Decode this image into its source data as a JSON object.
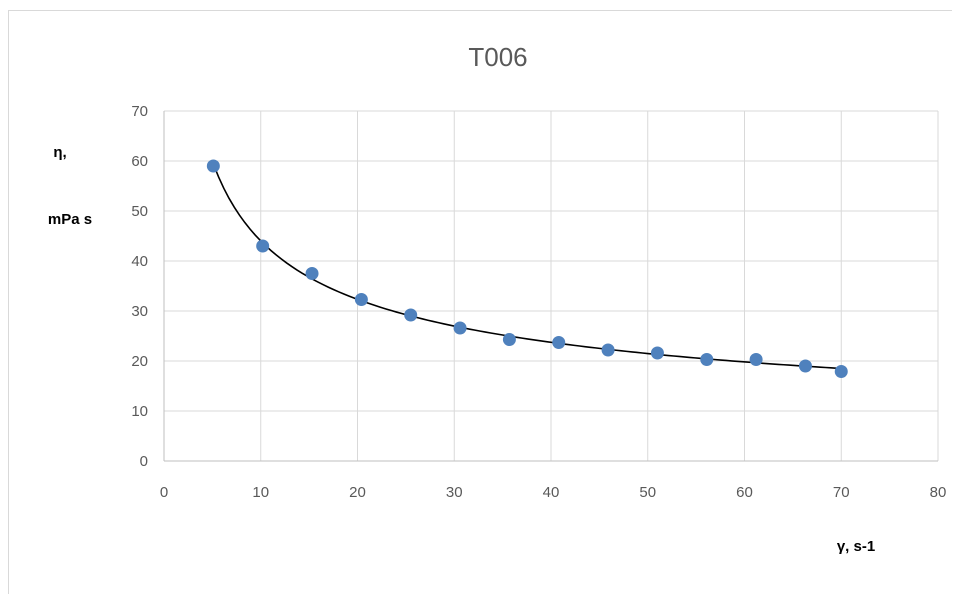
{
  "chart_data": {
    "type": "scatter",
    "title": "T006",
    "ylabel_line1": "η,",
    "ylabel_line2": "mPa s",
    "xlabel": "γ, s-1",
    "xlim": [
      0,
      80
    ],
    "ylim": [
      0,
      70
    ],
    "xticks": [
      "0",
      "10",
      "20",
      "30",
      "40",
      "50",
      "60",
      "70",
      "80"
    ],
    "yticks": [
      "0",
      "10",
      "20",
      "30",
      "40",
      "50",
      "60",
      "70"
    ],
    "grid": true,
    "legend": "none",
    "marker_color": "#4f81bd",
    "trendline": "power",
    "points": [
      {
        "x": 5.1,
        "y": 59
      },
      {
        "x": 10.2,
        "y": 43
      },
      {
        "x": 15.3,
        "y": 37.5
      },
      {
        "x": 20.4,
        "y": 32.3
      },
      {
        "x": 25.5,
        "y": 29.2
      },
      {
        "x": 30.6,
        "y": 26.6
      },
      {
        "x": 35.7,
        "y": 24.3
      },
      {
        "x": 40.8,
        "y": 23.7
      },
      {
        "x": 45.9,
        "y": 22.2
      },
      {
        "x": 51.0,
        "y": 21.6
      },
      {
        "x": 56.1,
        "y": 20.3
      },
      {
        "x": 61.2,
        "y": 20.3
      },
      {
        "x": 66.3,
        "y": 19.0
      },
      {
        "x": 70.0,
        "y": 17.9
      }
    ]
  }
}
